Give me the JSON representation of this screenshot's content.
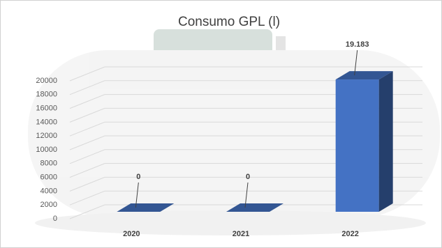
{
  "chart_data": {
    "type": "bar3d",
    "title": "Consumo GPL (l)",
    "categories": [
      "2020",
      "2021",
      "2022"
    ],
    "values": [
      0,
      0,
      19183
    ],
    "value_labels": [
      "0",
      "0",
      "19.183"
    ],
    "color": "#4472c4",
    "ylim": [
      0,
      20000
    ],
    "yticks": [
      0,
      2000,
      4000,
      6000,
      8000,
      10000,
      12000,
      14000,
      16000,
      18000,
      20000
    ],
    "grid": true
  }
}
